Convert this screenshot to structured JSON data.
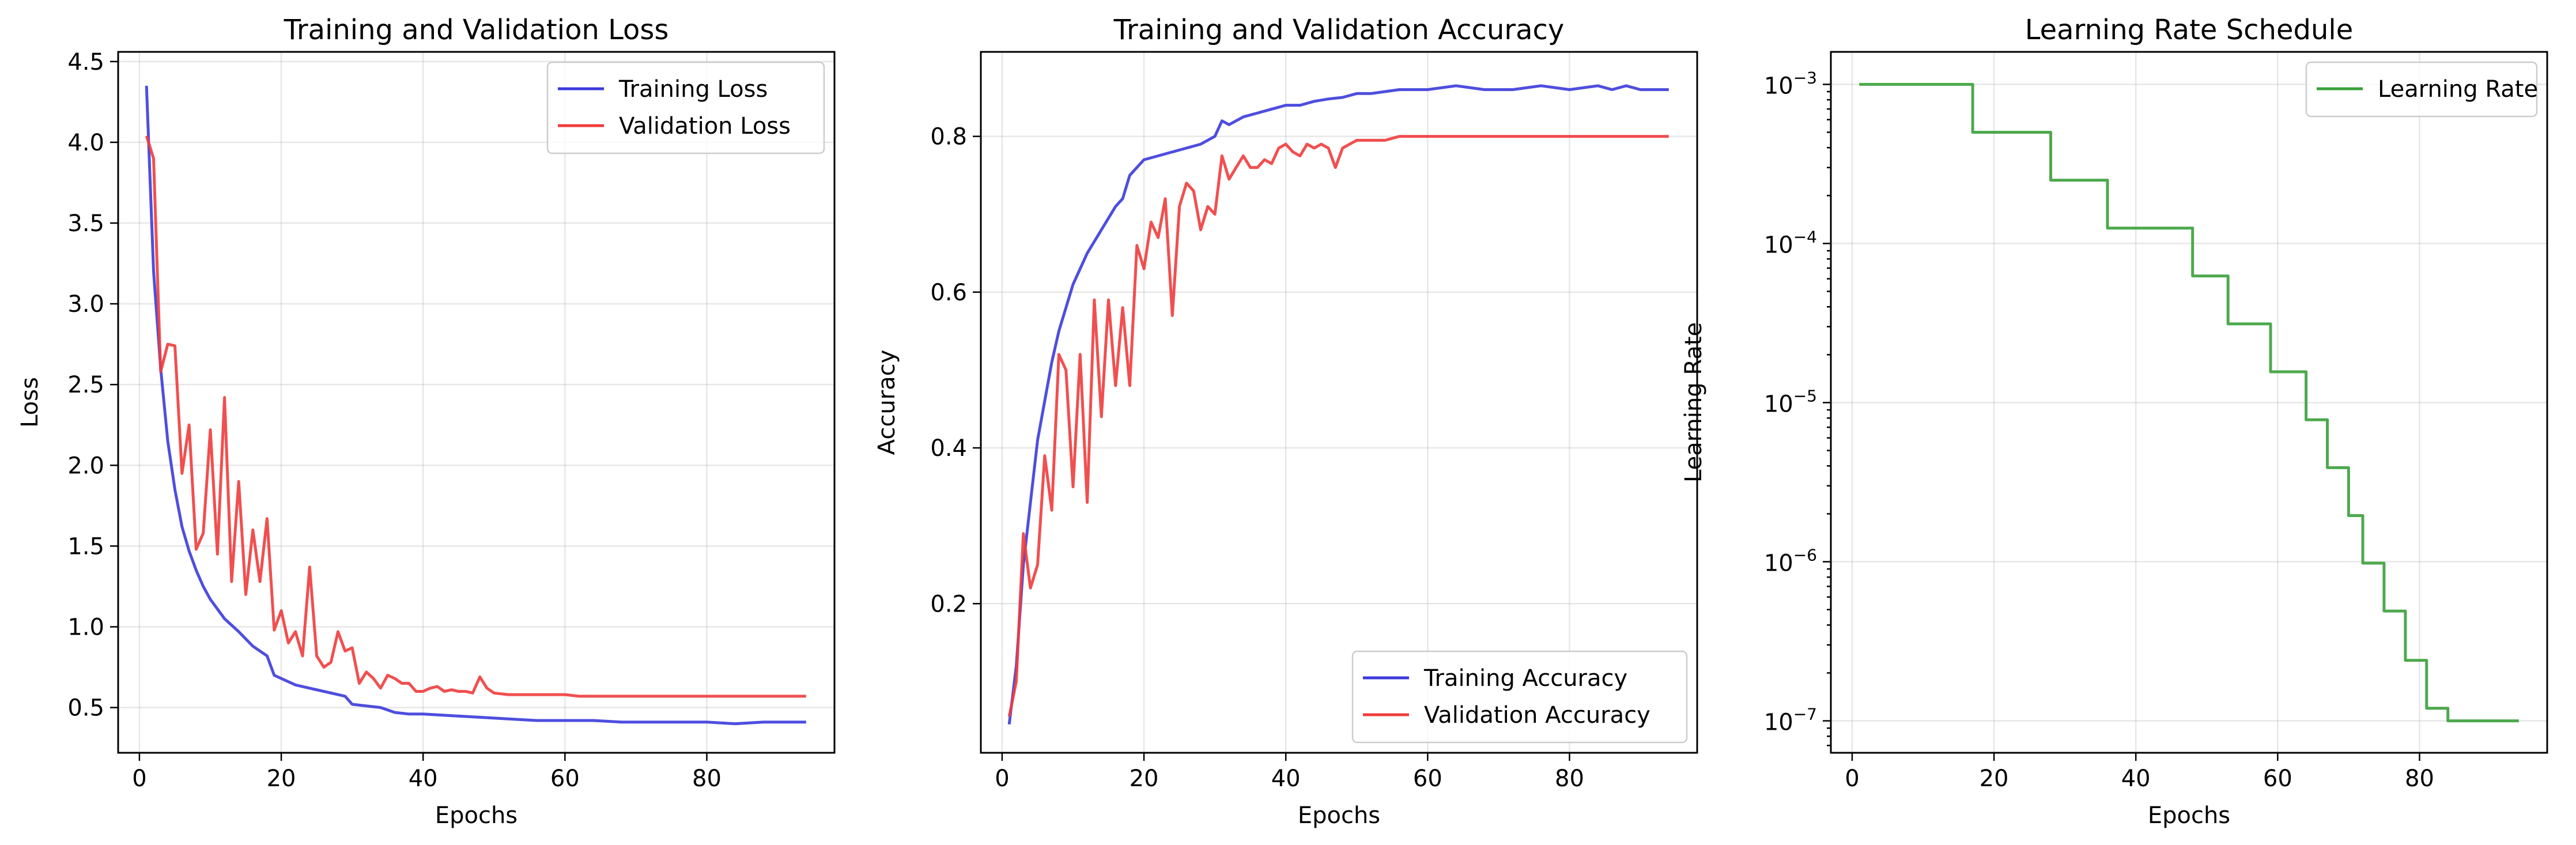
{
  "chart_data": [
    {
      "type": "line",
      "title": "Training and Validation Loss",
      "xlabel": "Epochs",
      "ylabel": "Loss",
      "xlim": [
        -3,
        98
      ],
      "ylim": [
        0.22,
        4.56
      ],
      "xticks": [
        0,
        20,
        40,
        60,
        80
      ],
      "yticks": [
        0.5,
        1.0,
        1.5,
        2.0,
        2.5,
        3.0,
        3.5,
        4.0,
        4.5
      ],
      "yticklabels": [
        "0.5",
        "1.0",
        "1.5",
        "2.0",
        "2.5",
        "3.0",
        "3.5",
        "4.0",
        "4.5"
      ],
      "grid": true,
      "legend_position": "upper right",
      "series": [
        {
          "name": "Training Loss",
          "color": "#3b3bdb",
          "x": [
            1,
            2,
            3,
            4,
            5,
            6,
            7,
            8,
            9,
            10,
            12,
            14,
            16,
            18,
            19,
            20,
            22,
            24,
            26,
            28,
            29,
            30,
            34,
            36,
            38,
            40,
            44,
            48,
            52,
            56,
            60,
            64,
            68,
            72,
            76,
            80,
            84,
            88,
            94
          ],
          "y": [
            4.35,
            3.2,
            2.6,
            2.15,
            1.85,
            1.62,
            1.47,
            1.35,
            1.25,
            1.17,
            1.05,
            0.97,
            0.88,
            0.82,
            0.7,
            0.68,
            0.64,
            0.62,
            0.6,
            0.58,
            0.57,
            0.52,
            0.5,
            0.47,
            0.46,
            0.46,
            0.45,
            0.44,
            0.43,
            0.42,
            0.42,
            0.42,
            0.41,
            0.41,
            0.41,
            0.41,
            0.4,
            0.41,
            0.41
          ]
        },
        {
          "name": "Validation Loss",
          "color": "#f03c3c",
          "x": [
            1,
            2,
            3,
            4,
            5,
            6,
            7,
            8,
            9,
            10,
            11,
            12,
            13,
            14,
            15,
            16,
            17,
            18,
            19,
            20,
            21,
            22,
            23,
            24,
            25,
            26,
            27,
            28,
            29,
            30,
            31,
            32,
            33,
            34,
            35,
            36,
            37,
            38,
            39,
            40,
            41,
            42,
            43,
            44,
            45,
            46,
            47,
            48,
            49,
            50,
            52,
            54,
            56,
            58,
            60,
            62,
            64,
            66,
            68,
            70,
            75,
            80,
            85,
            90,
            94
          ],
          "y": [
            4.04,
            3.9,
            2.58,
            2.75,
            2.74,
            1.95,
            2.25,
            1.48,
            1.58,
            2.22,
            1.45,
            2.42,
            1.28,
            1.9,
            1.2,
            1.6,
            1.28,
            1.67,
            0.98,
            1.1,
            0.9,
            0.97,
            0.82,
            1.37,
            0.82,
            0.75,
            0.78,
            0.97,
            0.85,
            0.87,
            0.65,
            0.72,
            0.68,
            0.62,
            0.7,
            0.68,
            0.65,
            0.65,
            0.6,
            0.6,
            0.62,
            0.63,
            0.6,
            0.61,
            0.6,
            0.6,
            0.59,
            0.69,
            0.62,
            0.59,
            0.58,
            0.58,
            0.58,
            0.58,
            0.58,
            0.57,
            0.57,
            0.57,
            0.57,
            0.57,
            0.57,
            0.57,
            0.57,
            0.57,
            0.57
          ]
        }
      ]
    },
    {
      "type": "line",
      "title": "Training and Validation Accuracy",
      "xlabel": "Epochs",
      "ylabel": "Accuracy",
      "xlim": [
        -3,
        98
      ],
      "ylim": [
        0.0085,
        0.9085
      ],
      "xticks": [
        0,
        20,
        40,
        60,
        80
      ],
      "yticks": [
        0.2,
        0.4,
        0.6,
        0.8
      ],
      "yticklabels": [
        "0.2",
        "0.4",
        "0.6",
        "0.8"
      ],
      "grid": true,
      "legend_position": "lower right",
      "series": [
        {
          "name": "Training Accuracy",
          "color": "#3b3bdb",
          "x": [
            1,
            2,
            3,
            4,
            5,
            6,
            7,
            8,
            9,
            10,
            12,
            14,
            16,
            17,
            18,
            19,
            20,
            22,
            24,
            26,
            28,
            30,
            31,
            32,
            34,
            36,
            38,
            40,
            42,
            44,
            46,
            48,
            50,
            52,
            56,
            60,
            64,
            68,
            72,
            76,
            80,
            84,
            86,
            88,
            90,
            94
          ],
          "y": [
            0.045,
            0.12,
            0.25,
            0.33,
            0.41,
            0.46,
            0.51,
            0.55,
            0.58,
            0.61,
            0.65,
            0.68,
            0.71,
            0.72,
            0.75,
            0.76,
            0.77,
            0.775,
            0.78,
            0.785,
            0.79,
            0.8,
            0.82,
            0.815,
            0.825,
            0.83,
            0.835,
            0.84,
            0.84,
            0.845,
            0.848,
            0.85,
            0.855,
            0.855,
            0.86,
            0.86,
            0.865,
            0.86,
            0.86,
            0.865,
            0.86,
            0.865,
            0.86,
            0.865,
            0.86,
            0.86
          ]
        },
        {
          "name": "Validation Accuracy",
          "color": "#f03c3c",
          "x": [
            1,
            2,
            3,
            4,
            5,
            6,
            7,
            8,
            9,
            10,
            11,
            12,
            13,
            14,
            15,
            16,
            17,
            18,
            19,
            20,
            21,
            22,
            23,
            24,
            25,
            26,
            27,
            28,
            29,
            30,
            31,
            32,
            33,
            34,
            35,
            36,
            37,
            38,
            39,
            40,
            41,
            42,
            43,
            44,
            45,
            46,
            47,
            48,
            49,
            50,
            52,
            54,
            56,
            60,
            64,
            68,
            72,
            76,
            80,
            85,
            90,
            94
          ],
          "y": [
            0.055,
            0.1,
            0.29,
            0.22,
            0.25,
            0.39,
            0.32,
            0.52,
            0.5,
            0.35,
            0.52,
            0.33,
            0.59,
            0.44,
            0.59,
            0.48,
            0.58,
            0.48,
            0.66,
            0.63,
            0.69,
            0.67,
            0.72,
            0.57,
            0.71,
            0.74,
            0.73,
            0.68,
            0.71,
            0.7,
            0.775,
            0.745,
            0.76,
            0.775,
            0.76,
            0.76,
            0.77,
            0.765,
            0.785,
            0.79,
            0.78,
            0.775,
            0.79,
            0.785,
            0.79,
            0.785,
            0.76,
            0.785,
            0.79,
            0.795,
            0.795,
            0.795,
            0.8,
            0.8,
            0.8,
            0.8,
            0.8,
            0.8,
            0.8,
            0.8,
            0.8,
            0.8
          ]
        }
      ]
    },
    {
      "type": "line",
      "title": "Learning Rate Schedule",
      "xlabel": "Epochs",
      "ylabel": "Learning Rate",
      "xlim": [
        -3,
        98
      ],
      "yscale": "log",
      "ylim": [
        6.3e-08,
        0.0016
      ],
      "xticks": [
        0,
        20,
        40,
        60,
        80
      ],
      "yticks": [
        0.001,
        0.0001,
        1e-05,
        1e-06,
        1e-07
      ],
      "yticklabels": [
        {
          "base": "10",
          "exp": "−3"
        },
        {
          "base": "10",
          "exp": "−4"
        },
        {
          "base": "10",
          "exp": "−5"
        },
        {
          "base": "10",
          "exp": "−6"
        },
        {
          "base": "10",
          "exp": "−7"
        }
      ],
      "grid": true,
      "legend_position": "upper right",
      "series": [
        {
          "name": "Learning Rate",
          "color": "#3aa03a",
          "step": true,
          "x": [
            1,
            17,
            17,
            28,
            28,
            36,
            36,
            48,
            48,
            53,
            53,
            59,
            59,
            64,
            64,
            67,
            67,
            70,
            70,
            72,
            72,
            75,
            75,
            78,
            78,
            81,
            81,
            84,
            84,
            86,
            86,
            94
          ],
          "y": [
            0.001,
            0.001,
            0.0005,
            0.0005,
            0.00025,
            0.00025,
            0.000125,
            0.000125,
            6.25e-05,
            6.25e-05,
            3.125e-05,
            3.125e-05,
            1.5625e-05,
            1.5625e-05,
            7.8e-06,
            7.8e-06,
            3.9e-06,
            3.9e-06,
            1.95e-06,
            1.95e-06,
            9.8e-07,
            9.8e-07,
            4.9e-07,
            4.9e-07,
            2.4e-07,
            2.4e-07,
            1.2e-07,
            1.2e-07,
            1e-07,
            1e-07,
            1e-07,
            1e-07
          ]
        }
      ]
    }
  ]
}
